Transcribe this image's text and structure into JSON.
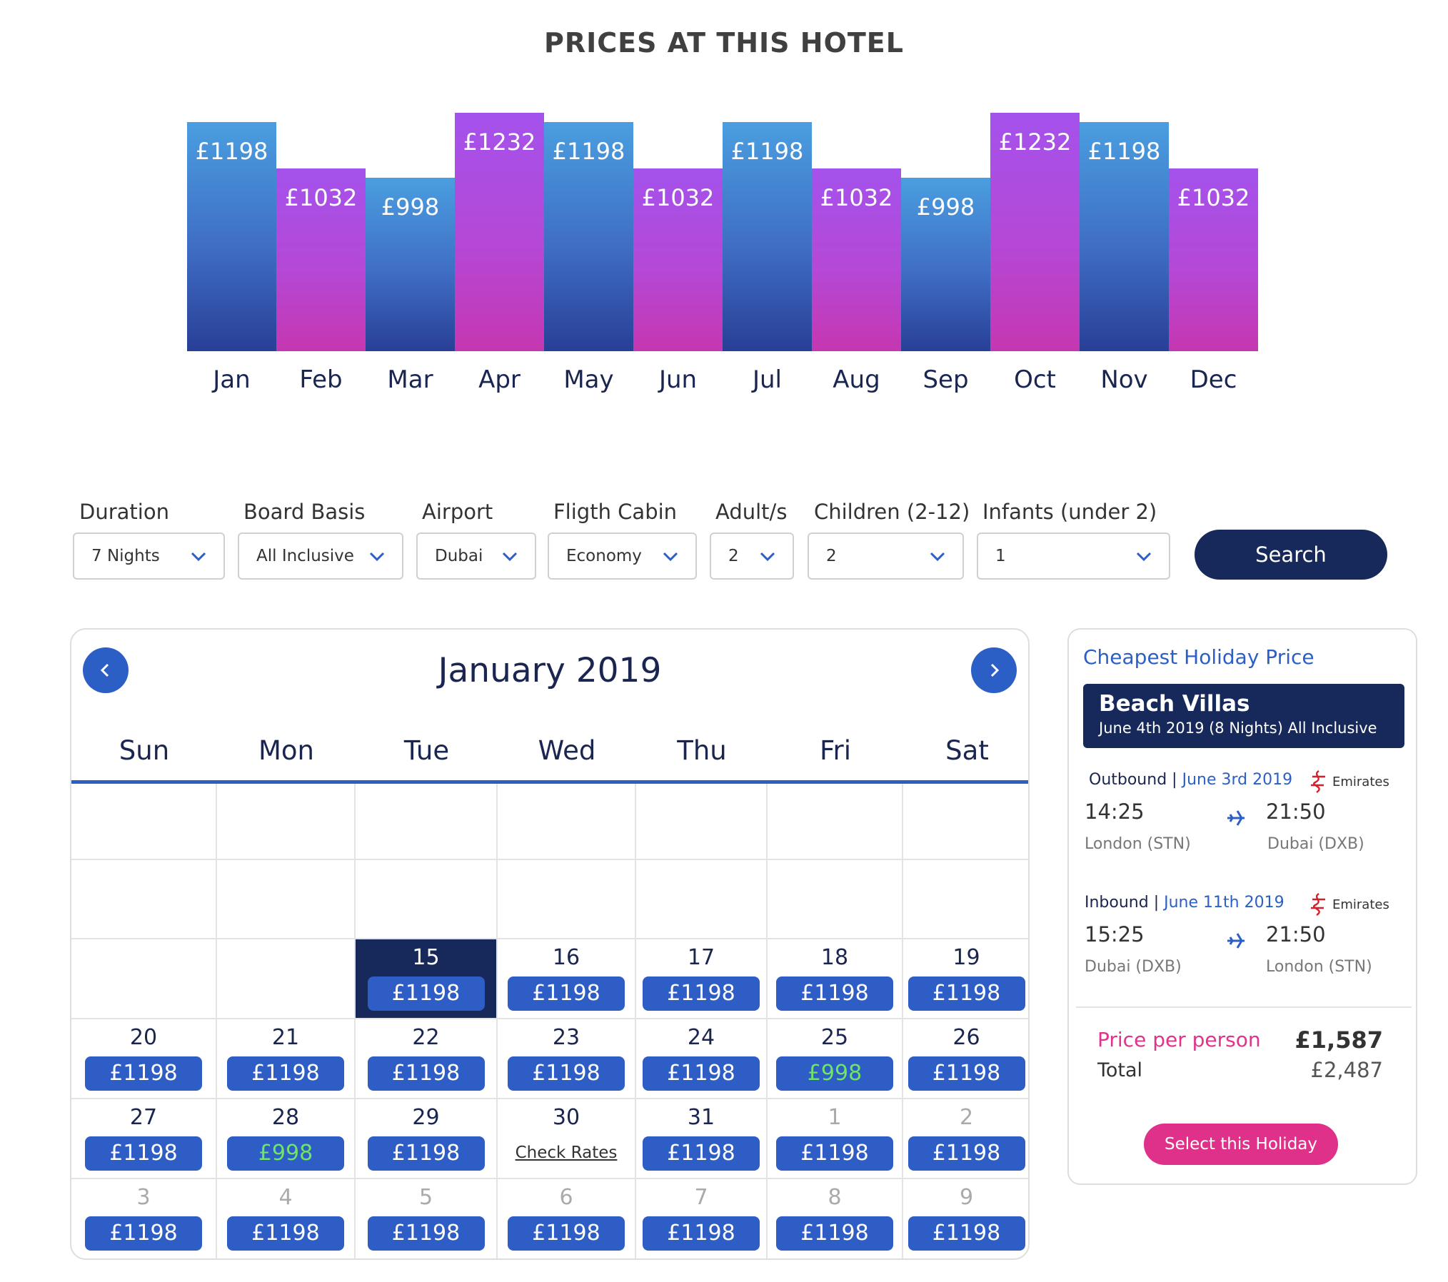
{
  "page_title": "PRICES AT THIS HOTEL",
  "colors": {
    "navy": "#16295a",
    "blue": "#2c5fc6",
    "pink": "#e0318a",
    "cheap_green": "#6fe36a"
  },
  "chart_data": {
    "type": "bar",
    "categories": [
      "Jan",
      "Feb",
      "Mar",
      "Apr",
      "May",
      "Jun",
      "Jul",
      "Aug",
      "Sep",
      "Oct",
      "Nov",
      "Dec"
    ],
    "values": [
      1198,
      1032,
      998,
      1232,
      1198,
      1032,
      1198,
      1032,
      998,
      1232,
      1198,
      1032
    ],
    "labels": [
      "£1198",
      "£1032",
      "£998",
      "£1232",
      "£1198",
      "£1032",
      "£1198",
      "£1032",
      "£998",
      "£1232",
      "£1198",
      "£1032"
    ],
    "bar_colors": [
      "blue",
      "purple",
      "blue",
      "purple",
      "blue",
      "purple",
      "blue",
      "purple",
      "blue",
      "purple",
      "blue",
      "purple"
    ]
  },
  "filters": {
    "duration": {
      "label": "Duration",
      "value": "7 Nights"
    },
    "board": {
      "label": "Board Basis",
      "value": "All Inclusive"
    },
    "airport": {
      "label": "Airport",
      "value": "Dubai"
    },
    "cabin": {
      "label": "Fligth Cabin",
      "value": "Economy"
    },
    "adults": {
      "label": "Adult/s",
      "value": "2"
    },
    "children": {
      "label": "Children (2-12)",
      "value": "2"
    },
    "infants": {
      "label": "Infants (under 2)",
      "value": "1"
    },
    "search_label": "Search"
  },
  "calendar": {
    "month_label": "January 2019",
    "weekdays": [
      "Sun",
      "Mon",
      "Tue",
      "Wed",
      "Thu",
      "Fri",
      "Sat"
    ],
    "rows": [
      [
        {},
        {},
        {},
        {},
        {},
        {},
        {}
      ],
      [
        {},
        {},
        {},
        {},
        {},
        {},
        {}
      ],
      [
        {},
        {},
        {
          "day": "15",
          "price": "£1198",
          "today": true
        },
        {
          "day": "16",
          "price": "£1198"
        },
        {
          "day": "17",
          "price": "£1198"
        },
        {
          "day": "18",
          "price": "£1198"
        },
        {
          "day": "19",
          "price": "£1198"
        }
      ],
      [
        {
          "day": "20",
          "price": "£1198"
        },
        {
          "day": "21",
          "price": "£1198"
        },
        {
          "day": "22",
          "price": "£1198"
        },
        {
          "day": "23",
          "price": "£1198"
        },
        {
          "day": "24",
          "price": "£1198"
        },
        {
          "day": "25",
          "price": "£998",
          "cheap": true
        },
        {
          "day": "26",
          "price": "£1198"
        }
      ],
      [
        {
          "day": "27",
          "price": "£1198"
        },
        {
          "day": "28",
          "price": "£998",
          "cheap": true
        },
        {
          "day": "29",
          "price": "£1198"
        },
        {
          "day": "30",
          "check": "Check Rates"
        },
        {
          "day": "31",
          "price": "£1198"
        },
        {
          "day": "1",
          "price": "£1198",
          "other": true
        },
        {
          "day": "2",
          "price": "£1198",
          "other": true
        }
      ],
      [
        {
          "day": "3",
          "price": "£1198",
          "other": true
        },
        {
          "day": "4",
          "price": "£1198",
          "other": true
        },
        {
          "day": "5",
          "price": "£1198",
          "other": true
        },
        {
          "day": "6",
          "price": "£1198",
          "other": true
        },
        {
          "day": "7",
          "price": "£1198",
          "other": true
        },
        {
          "day": "8",
          "price": "£1198",
          "other": true
        },
        {
          "day": "9",
          "price": "£1198",
          "other": true
        }
      ]
    ]
  },
  "deal": {
    "heading": "Cheapest Holiday Price",
    "hotel": "Beach Villas",
    "summary": "June 4th 2019 (8 Nights) All Inclusive",
    "outbound": {
      "label": "Outbound",
      "date": "June 3rd 2019",
      "airline": "Emirates",
      "depart_time": "14:25",
      "arrive_time": "21:50",
      "from": "London (STN)",
      "to": "Dubai (DXB)"
    },
    "inbound": {
      "label": "Inbound",
      "date": "June 11th 2019",
      "airline": "Emirates",
      "depart_time": "15:25",
      "arrive_time": "21:50",
      "from": "Dubai (DXB)",
      "to": "London (STN)"
    },
    "price_per_person_label": "Price per person",
    "price_per_person": "£1,587",
    "total_label": "Total",
    "total": "£2,487",
    "select_label": "Select this Holiday"
  },
  "icons": {
    "prev": "chevron-left-icon",
    "next": "chevron-right-icon",
    "dropdown": "chevron-down-icon",
    "plane": "plane-icon",
    "airline_logo": "emirates-logo"
  }
}
